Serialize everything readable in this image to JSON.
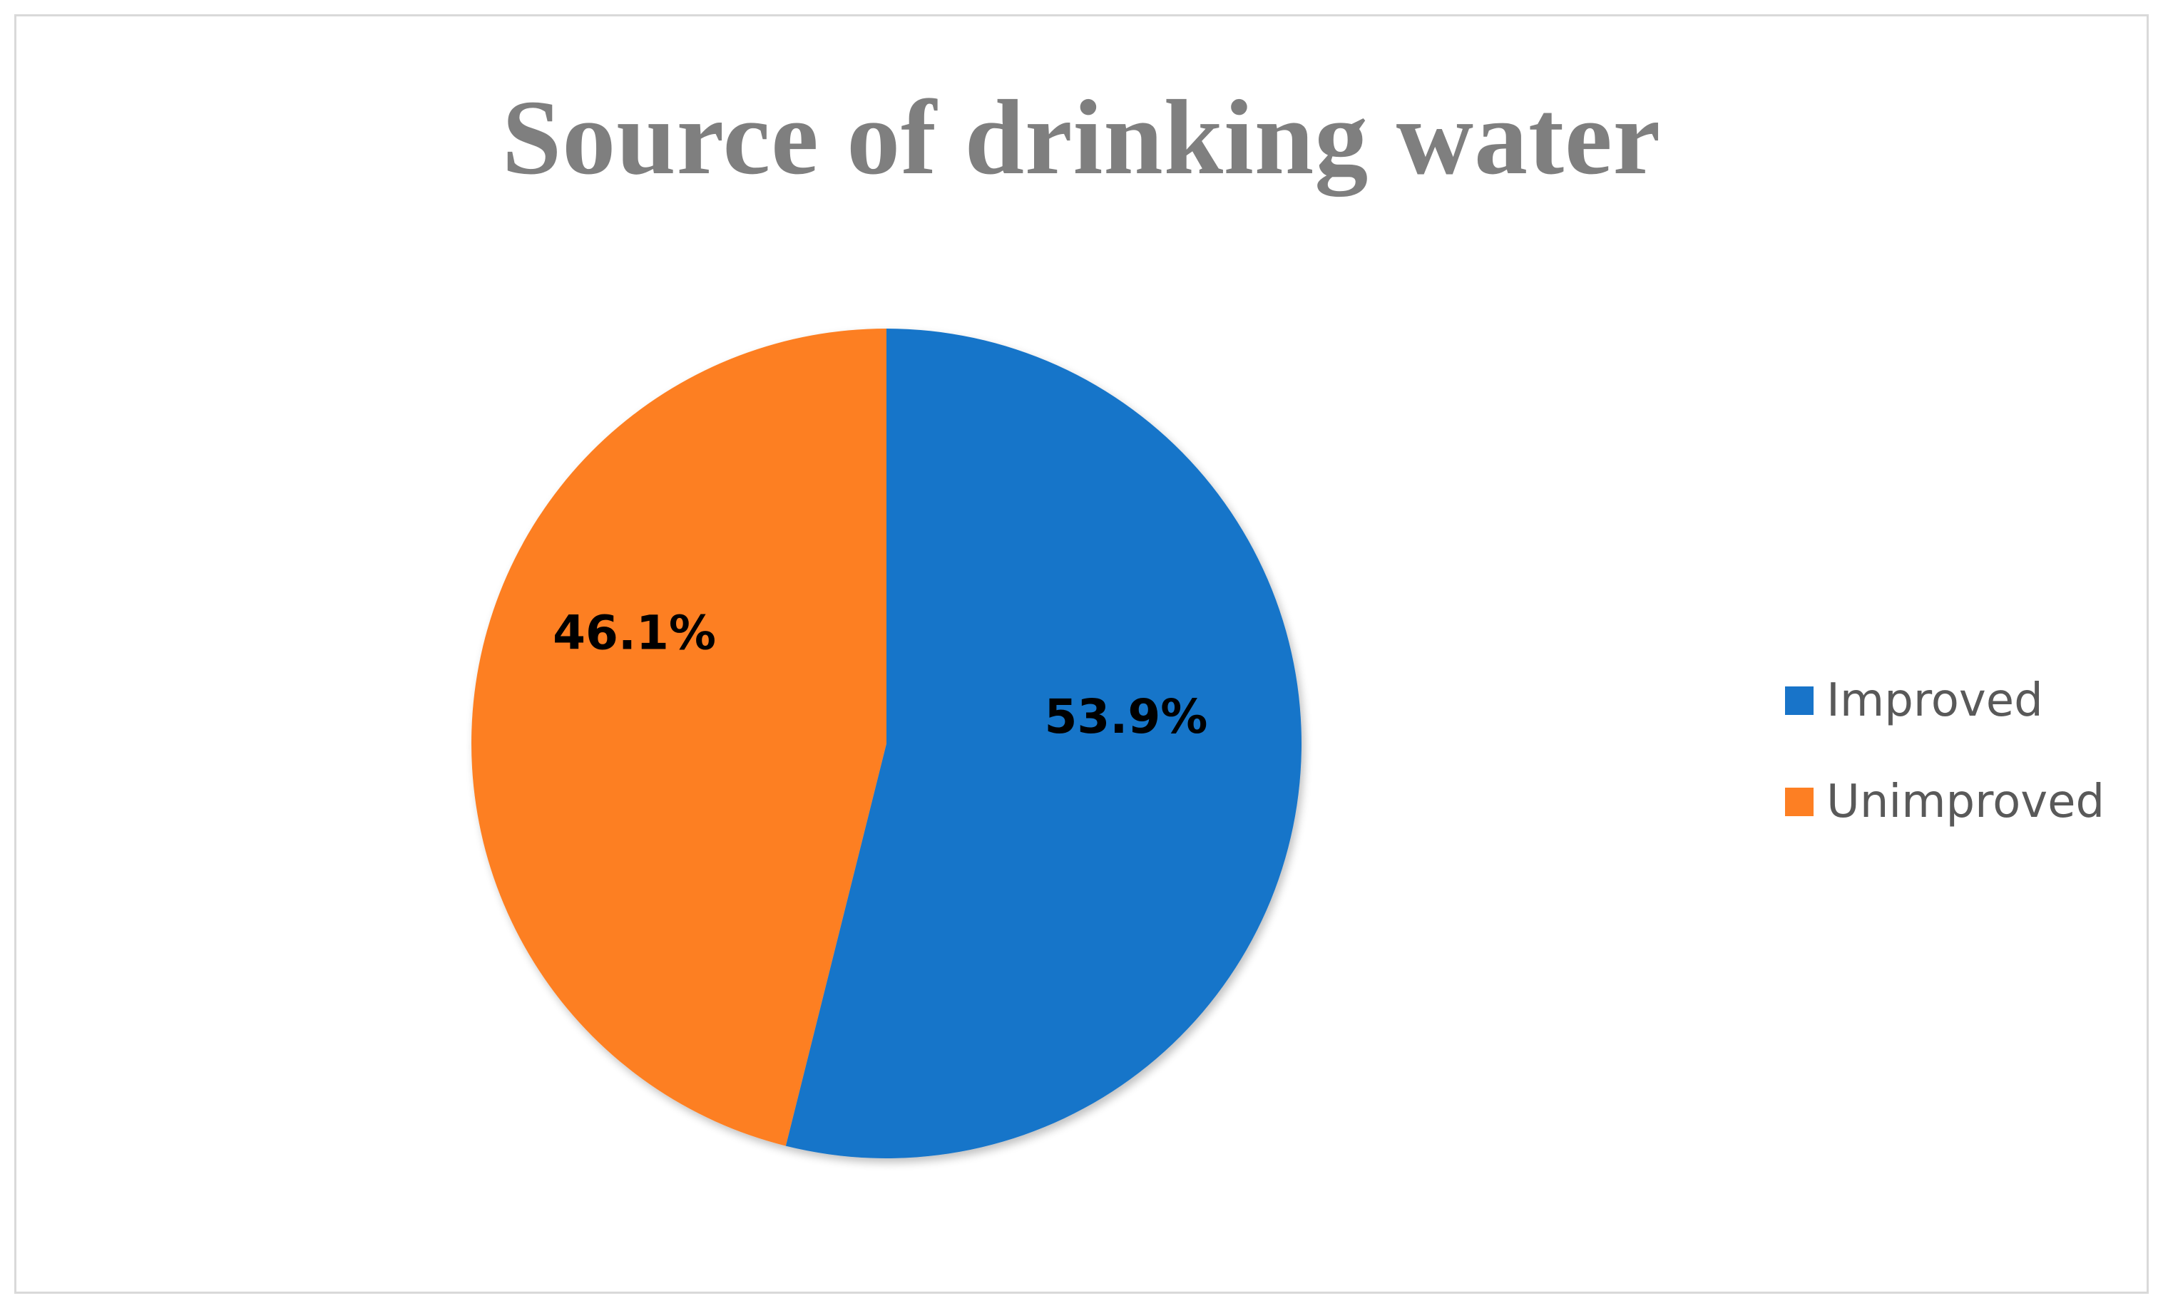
{
  "chart_data": {
    "type": "pie",
    "title": "Source of drinking water",
    "categories": [
      "Improved",
      "Unimproved"
    ],
    "values": [
      53.9,
      46.1
    ],
    "data_labels": [
      "53.9%",
      "46.1%"
    ],
    "colors": [
      "#1874c9",
      "#fd7f23"
    ],
    "legend_placement": "right",
    "start_angle_degrees": 0,
    "direction": "clockwise"
  },
  "legend": {
    "items": [
      {
        "label": "Improved",
        "color": "#1874c9"
      },
      {
        "label": "Unimproved",
        "color": "#fd7f23"
      }
    ]
  }
}
